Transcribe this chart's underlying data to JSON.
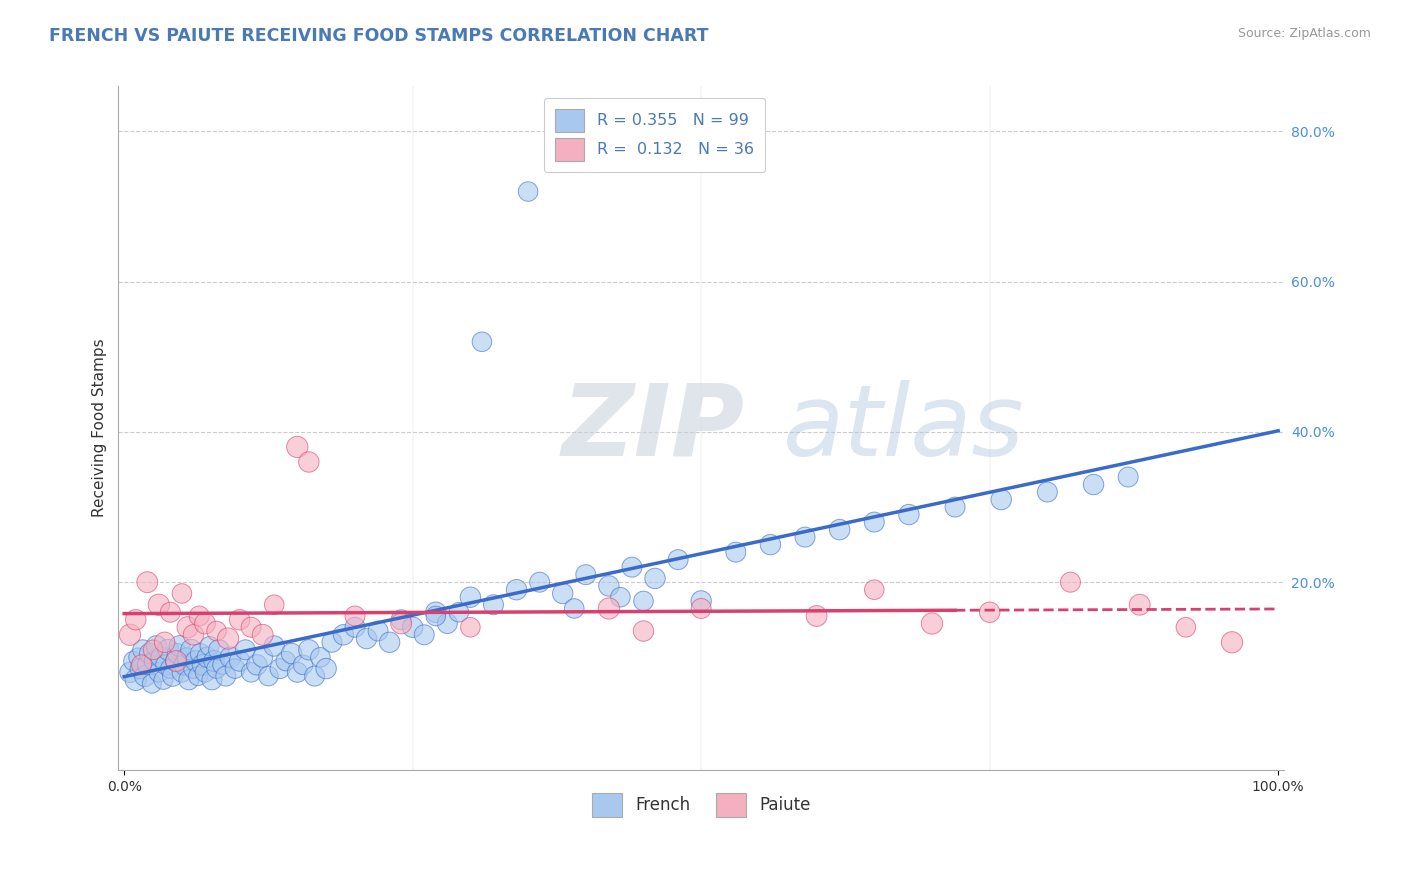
{
  "title": "FRENCH VS PAIUTE RECEIVING FOOD STAMPS CORRELATION CHART",
  "source": "Source: ZipAtlas.com",
  "ylabel": "Receiving Food Stamps",
  "xlabel": "",
  "xlim": [
    -0.005,
    1.005
  ],
  "ylim": [
    -0.05,
    0.86
  ],
  "xtick_positions": [
    0.0,
    1.0
  ],
  "xtick_labels": [
    "0.0%",
    "100.0%"
  ],
  "ytick_vals_right": [
    0.8,
    0.6,
    0.4,
    0.2
  ],
  "ytick_labels_right": [
    "80.0%",
    "60.0%",
    "40.0%",
    "20.0%"
  ],
  "grid_color": "#cccccc",
  "background_color": "#ffffff",
  "french_color": "#a8c8ee",
  "paiute_color": "#f4b0c0",
  "french_line_color": "#3a6bc8",
  "paiute_line_color": "#d84070",
  "legend_french_label": "R = 0.355   N = 99",
  "legend_paiute_label": "R =  0.132   N = 36",
  "watermark_zip": "ZIP",
  "watermark_atlas": "atlas",
  "french_scatter_x": [
    0.005,
    0.008,
    0.01,
    0.012,
    0.014,
    0.016,
    0.018,
    0.02,
    0.022,
    0.024,
    0.026,
    0.028,
    0.03,
    0.032,
    0.034,
    0.036,
    0.038,
    0.04,
    0.042,
    0.044,
    0.046,
    0.048,
    0.05,
    0.052,
    0.054,
    0.056,
    0.058,
    0.06,
    0.062,
    0.064,
    0.066,
    0.068,
    0.07,
    0.072,
    0.074,
    0.076,
    0.078,
    0.08,
    0.082,
    0.085,
    0.088,
    0.092,
    0.096,
    0.1,
    0.105,
    0.11,
    0.115,
    0.12,
    0.125,
    0.13,
    0.135,
    0.14,
    0.145,
    0.15,
    0.155,
    0.16,
    0.165,
    0.17,
    0.175,
    0.18,
    0.19,
    0.2,
    0.21,
    0.22,
    0.23,
    0.24,
    0.25,
    0.26,
    0.27,
    0.28,
    0.3,
    0.32,
    0.34,
    0.36,
    0.38,
    0.4,
    0.42,
    0.44,
    0.46,
    0.48,
    0.5,
    0.53,
    0.56,
    0.59,
    0.62,
    0.65,
    0.68,
    0.72,
    0.76,
    0.8,
    0.84,
    0.87,
    0.31,
    0.43,
    0.39,
    0.29,
    0.35,
    0.27,
    0.45
  ],
  "french_scatter_y": [
    0.08,
    0.095,
    0.07,
    0.1,
    0.085,
    0.11,
    0.075,
    0.09,
    0.105,
    0.065,
    0.095,
    0.115,
    0.08,
    0.1,
    0.07,
    0.09,
    0.11,
    0.085,
    0.075,
    0.095,
    0.105,
    0.115,
    0.08,
    0.09,
    0.1,
    0.07,
    0.11,
    0.085,
    0.095,
    0.075,
    0.105,
    0.09,
    0.08,
    0.1,
    0.115,
    0.07,
    0.095,
    0.085,
    0.11,
    0.09,
    0.075,
    0.1,
    0.085,
    0.095,
    0.11,
    0.08,
    0.09,
    0.1,
    0.075,
    0.115,
    0.085,
    0.095,
    0.105,
    0.08,
    0.09,
    0.11,
    0.075,
    0.1,
    0.085,
    0.12,
    0.13,
    0.14,
    0.125,
    0.135,
    0.12,
    0.15,
    0.14,
    0.13,
    0.16,
    0.145,
    0.18,
    0.17,
    0.19,
    0.2,
    0.185,
    0.21,
    0.195,
    0.22,
    0.205,
    0.23,
    0.175,
    0.24,
    0.25,
    0.26,
    0.27,
    0.28,
    0.29,
    0.3,
    0.31,
    0.32,
    0.33,
    0.34,
    0.52,
    0.18,
    0.165,
    0.16,
    0.72,
    0.155,
    0.175
  ],
  "french_scatter_size": [
    120,
    110,
    130,
    100,
    120,
    115,
    125,
    110,
    120,
    105,
    115,
    125,
    110,
    120,
    105,
    115,
    125,
    110,
    120,
    105,
    115,
    125,
    110,
    120,
    105,
    115,
    125,
    110,
    120,
    105,
    115,
    125,
    110,
    120,
    105,
    115,
    125,
    110,
    120,
    105,
    115,
    125,
    110,
    120,
    115,
    110,
    120,
    115,
    110,
    120,
    115,
    110,
    120,
    115,
    110,
    120,
    115,
    110,
    120,
    115,
    120,
    115,
    120,
    115,
    120,
    115,
    120,
    115,
    120,
    115,
    120,
    115,
    120,
    115,
    120,
    115,
    120,
    115,
    120,
    115,
    120,
    115,
    120,
    115,
    120,
    115,
    120,
    115,
    120,
    115,
    120,
    115,
    110,
    110,
    110,
    110,
    110,
    110,
    110
  ],
  "paiute_scatter_x": [
    0.005,
    0.01,
    0.015,
    0.02,
    0.025,
    0.03,
    0.035,
    0.04,
    0.045,
    0.05,
    0.055,
    0.06,
    0.065,
    0.07,
    0.08,
    0.09,
    0.1,
    0.11,
    0.12,
    0.13,
    0.15,
    0.16,
    0.2,
    0.24,
    0.3,
    0.42,
    0.45,
    0.5,
    0.6,
    0.65,
    0.7,
    0.75,
    0.82,
    0.88,
    0.92,
    0.96
  ],
  "paiute_scatter_y": [
    0.13,
    0.15,
    0.09,
    0.2,
    0.11,
    0.17,
    0.12,
    0.16,
    0.095,
    0.185,
    0.14,
    0.13,
    0.155,
    0.145,
    0.135,
    0.125,
    0.15,
    0.14,
    0.13,
    0.17,
    0.38,
    0.36,
    0.155,
    0.145,
    0.14,
    0.165,
    0.135,
    0.165,
    0.155,
    0.19,
    0.145,
    0.16,
    0.2,
    0.17,
    0.14,
    0.12
  ],
  "paiute_scatter_size": [
    130,
    120,
    115,
    125,
    110,
    130,
    120,
    115,
    125,
    110,
    130,
    120,
    115,
    125,
    110,
    130,
    120,
    115,
    125,
    110,
    130,
    120,
    115,
    125,
    110,
    130,
    120,
    115,
    125,
    110,
    130,
    120,
    115,
    125,
    110,
    130
  ]
}
